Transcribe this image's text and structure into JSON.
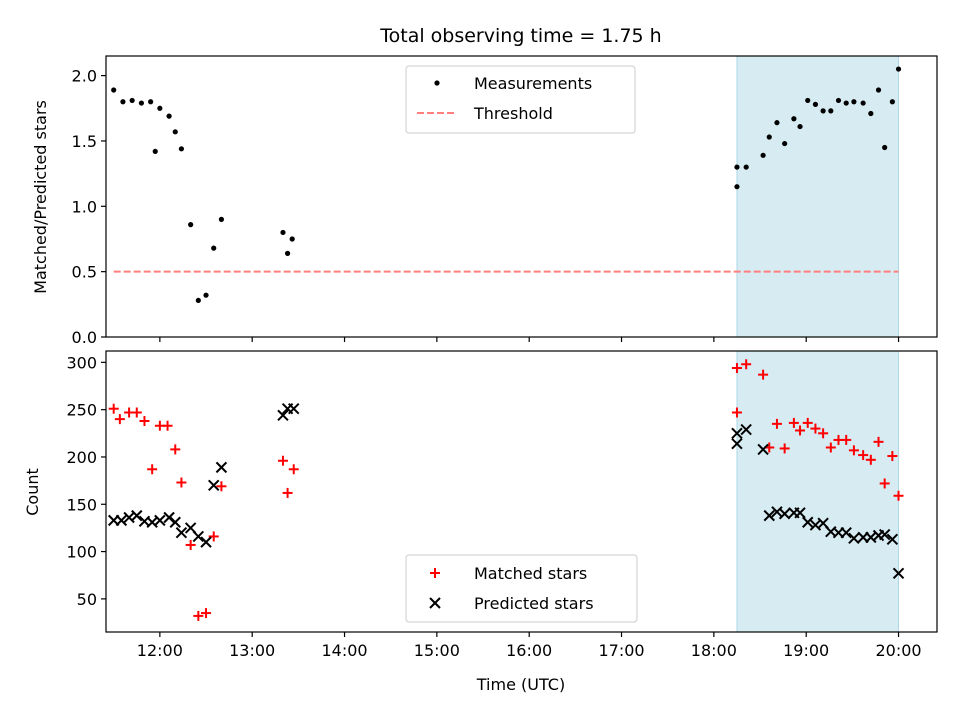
{
  "figure_title": "Total observing time = 1.75 h",
  "colors": {
    "measurements": "#000000",
    "threshold": "#ff7f7f",
    "matched": "#ff0000",
    "predicted": "#000000",
    "shade": "#add8e6"
  },
  "chart_data": [
    {
      "type": "scatter",
      "ylabel": "Matched/Predicted stars",
      "xlabel": "",
      "xlim": [
        "11:25",
        "20:25"
      ],
      "ylim": [
        0,
        2.15
      ],
      "yticks": [
        0,
        0.5,
        1,
        1.5,
        2
      ],
      "ytick_labels": [
        "0.0",
        "0.5",
        "1.0",
        "1.5",
        "2.0"
      ],
      "shaded_interval": [
        "18:15",
        "20:00"
      ],
      "legend_position": "top-center",
      "series": [
        {
          "name": "Measurements",
          "kind": "dot",
          "points": [
            [
              "11:30",
              1.89
            ],
            [
              "11:36",
              1.8
            ],
            [
              "11:42",
              1.81
            ],
            [
              "11:48",
              1.79
            ],
            [
              "11:54",
              1.8
            ],
            [
              "11:57",
              1.42
            ],
            [
              "12:00",
              1.75
            ],
            [
              "12:06",
              1.69
            ],
            [
              "12:10",
              1.57
            ],
            [
              "12:14",
              1.44
            ],
            [
              "12:20",
              0.86
            ],
            [
              "12:25",
              0.28
            ],
            [
              "12:30",
              0.32
            ],
            [
              "12:35",
              0.68
            ],
            [
              "12:40",
              0.9
            ],
            [
              "13:20",
              0.8
            ],
            [
              "13:23",
              0.64
            ],
            [
              "13:26",
              0.75
            ],
            [
              "18:15",
              1.3
            ],
            [
              "18:15",
              1.15
            ],
            [
              "18:21",
              1.3
            ],
            [
              "18:32",
              1.39
            ],
            [
              "18:36",
              1.53
            ],
            [
              "18:41",
              1.64
            ],
            [
              "18:46",
              1.48
            ],
            [
              "18:52",
              1.67
            ],
            [
              "18:56",
              1.61
            ],
            [
              "19:01",
              1.81
            ],
            [
              "19:06",
              1.78
            ],
            [
              "19:11",
              1.73
            ],
            [
              "19:16",
              1.73
            ],
            [
              "19:21",
              1.81
            ],
            [
              "19:26",
              1.79
            ],
            [
              "19:31",
              1.8
            ],
            [
              "19:37",
              1.79
            ],
            [
              "19:42",
              1.71
            ],
            [
              "19:47",
              1.89
            ],
            [
              "19:51",
              1.45
            ],
            [
              "19:56",
              1.8
            ],
            [
              "20:00",
              2.05
            ]
          ]
        },
        {
          "name": "Threshold",
          "kind": "dashed-line",
          "points": [
            [
              "11:30",
              0.5
            ],
            [
              "20:00",
              0.5
            ]
          ]
        }
      ]
    },
    {
      "type": "scatter",
      "ylabel": "Count",
      "xlabel": "Time (UTC)",
      "xlim": [
        "11:25",
        "20:25"
      ],
      "ylim": [
        15,
        312
      ],
      "yticks": [
        50,
        100,
        150,
        200,
        250,
        300
      ],
      "ytick_labels": [
        "50",
        "100",
        "150",
        "200",
        "250",
        "300"
      ],
      "xticks": [
        "12:00",
        "13:00",
        "14:00",
        "15:00",
        "16:00",
        "17:00",
        "18:00",
        "19:00",
        "20:00"
      ],
      "xtick_labels": [
        "12:00",
        "13:00",
        "14:00",
        "15:00",
        "16:00",
        "17:00",
        "18:00",
        "19:00",
        "20:00"
      ],
      "shaded_interval": [
        "18:15",
        "20:00"
      ],
      "legend_position": "bottom-center",
      "series": [
        {
          "name": "Matched stars",
          "kind": "plus",
          "points": [
            [
              "11:30",
              251
            ],
            [
              "11:34",
              240
            ],
            [
              "11:40",
              247
            ],
            [
              "11:45",
              247
            ],
            [
              "11:50",
              238
            ],
            [
              "11:55",
              187
            ],
            [
              "12:00",
              233
            ],
            [
              "12:05",
              233
            ],
            [
              "12:10",
              208
            ],
            [
              "12:14",
              173
            ],
            [
              "12:20",
              107
            ],
            [
              "12:25",
              32
            ],
            [
              "12:30",
              35
            ],
            [
              "12:35",
              116
            ],
            [
              "12:40",
              169
            ],
            [
              "13:20",
              196
            ],
            [
              "13:23",
              162
            ],
            [
              "13:27",
              187
            ],
            [
              "18:15",
              294
            ],
            [
              "18:15",
              247
            ],
            [
              "18:21",
              298
            ],
            [
              "18:32",
              287
            ],
            [
              "18:36",
              210
            ],
            [
              "18:41",
              235
            ],
            [
              "18:46",
              209
            ],
            [
              "18:52",
              236
            ],
            [
              "18:56",
              228
            ],
            [
              "19:01",
              236
            ],
            [
              "19:06",
              230
            ],
            [
              "19:11",
              225
            ],
            [
              "19:16",
              210
            ],
            [
              "19:21",
              218
            ],
            [
              "19:26",
              218
            ],
            [
              "19:31",
              207
            ],
            [
              "19:37",
              202
            ],
            [
              "19:42",
              197
            ],
            [
              "19:47",
              216
            ],
            [
              "19:51",
              172
            ],
            [
              "19:56",
              201
            ],
            [
              "20:00",
              159
            ]
          ]
        },
        {
          "name": "Predicted stars",
          "kind": "cross",
          "points": [
            [
              "11:30",
              133
            ],
            [
              "11:35",
              133
            ],
            [
              "11:40",
              136
            ],
            [
              "11:45",
              138
            ],
            [
              "11:50",
              132
            ],
            [
              "11:55",
              131
            ],
            [
              "12:00",
              133
            ],
            [
              "12:06",
              136
            ],
            [
              "12:10",
              131
            ],
            [
              "12:14",
              120
            ],
            [
              "12:20",
              125
            ],
            [
              "12:25",
              116
            ],
            [
              "12:30",
              110
            ],
            [
              "12:35",
              170
            ],
            [
              "12:40",
              189
            ],
            [
              "13:20",
              244
            ],
            [
              "13:23",
              251
            ],
            [
              "13:27",
              251
            ],
            [
              "18:15",
              214
            ],
            [
              "18:15",
              225
            ],
            [
              "18:21",
              229
            ],
            [
              "18:32",
              208
            ],
            [
              "18:36",
              138
            ],
            [
              "18:41",
              142
            ],
            [
              "18:46",
              140
            ],
            [
              "18:52",
              141
            ],
            [
              "18:56",
              141
            ],
            [
              "19:01",
              131
            ],
            [
              "19:06",
              128
            ],
            [
              "19:11",
              130
            ],
            [
              "19:16",
              121
            ],
            [
              "19:21",
              120
            ],
            [
              "19:26",
              120
            ],
            [
              "19:31",
              114
            ],
            [
              "19:37",
              115
            ],
            [
              "19:42",
              115
            ],
            [
              "19:47",
              117
            ],
            [
              "19:51",
              118
            ],
            [
              "19:56",
              113
            ],
            [
              "20:00",
              77
            ]
          ]
        }
      ]
    }
  ]
}
